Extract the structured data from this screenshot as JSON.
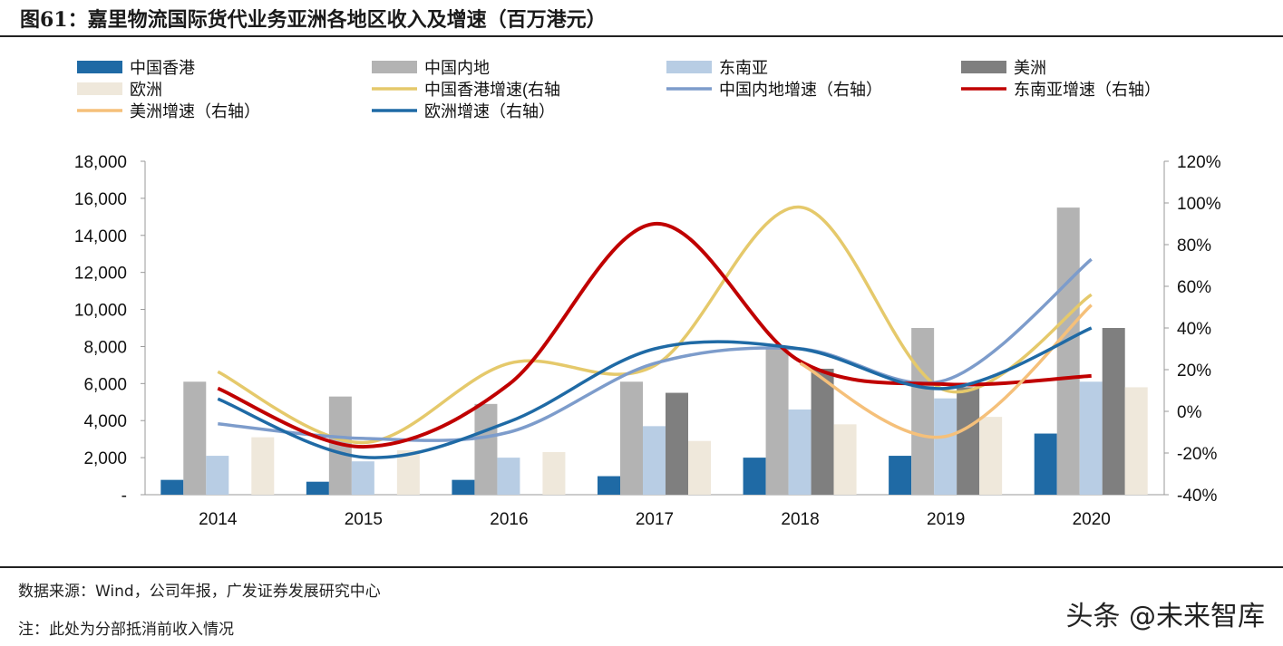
{
  "title": "图61：嘉里物流国际货代业务亚洲各地区收入及增速（百万港元）",
  "footer": {
    "source": "数据来源：Wind，公司年报，广发证券发展研究中心",
    "note": "注：此处为分部抵消前收入情况"
  },
  "watermark": "头条 @未来智库",
  "chart_data": {
    "type": "bar+line",
    "categories": [
      "2014",
      "2015",
      "2016",
      "2017",
      "2018",
      "2019",
      "2020"
    ],
    "y_left": {
      "range": [
        0,
        18000
      ],
      "ticks": [
        "-",
        "2,000",
        "4,000",
        "6,000",
        "8,000",
        "10,000",
        "12,000",
        "14,000",
        "16,000",
        "18,000"
      ]
    },
    "y_right": {
      "range": [
        -40,
        120
      ],
      "ticks": [
        "-40%",
        "-20%",
        "0%",
        "20%",
        "40%",
        "60%",
        "80%",
        "100%",
        "120%"
      ]
    },
    "legend_position": "top",
    "bars": [
      {
        "name": "中国香港",
        "color": "#1f6aa5",
        "values": [
          800,
          700,
          800,
          1000,
          2000,
          2100,
          3300
        ]
      },
      {
        "name": "中国内地",
        "color": "#b3b3b3",
        "values": [
          6100,
          5300,
          4900,
          6100,
          7900,
          9000,
          15500
        ]
      },
      {
        "name": "东南亚",
        "color": "#b8cde4",
        "values": [
          2100,
          1800,
          2000,
          3700,
          4600,
          5200,
          6100
        ]
      },
      {
        "name": "美洲",
        "color": "#7f7f7f",
        "values": [
          null,
          null,
          null,
          5500,
          6800,
          5800,
          9000
        ]
      },
      {
        "name": "欧洲",
        "color": "#efe8db",
        "values": [
          3100,
          2400,
          2300,
          2900,
          3800,
          4200,
          5800
        ]
      }
    ],
    "lines": [
      {
        "name": "中国香港增速(右轴",
        "color": "#e5c96b",
        "values": [
          19,
          -15,
          23,
          22,
          98,
          10,
          56
        ]
      },
      {
        "name": "中国内地增速（右轴）",
        "color": "#7d9ccb",
        "values": [
          -6,
          -13,
          -10,
          23,
          30,
          15,
          73
        ]
      },
      {
        "name": "东南亚增速（右轴）",
        "color": "#c00000",
        "values": [
          11,
          -17,
          13,
          90,
          24,
          13,
          17
        ]
      },
      {
        "name": "美洲增速（右轴）",
        "color": "#f5c07a",
        "values": [
          null,
          null,
          null,
          null,
          23,
          -12,
          51
        ]
      },
      {
        "name": "欧洲增速（右轴）",
        "color": "#1f6aa5",
        "values": [
          6,
          -22,
          -5,
          30,
          30,
          11,
          40
        ]
      }
    ]
  }
}
